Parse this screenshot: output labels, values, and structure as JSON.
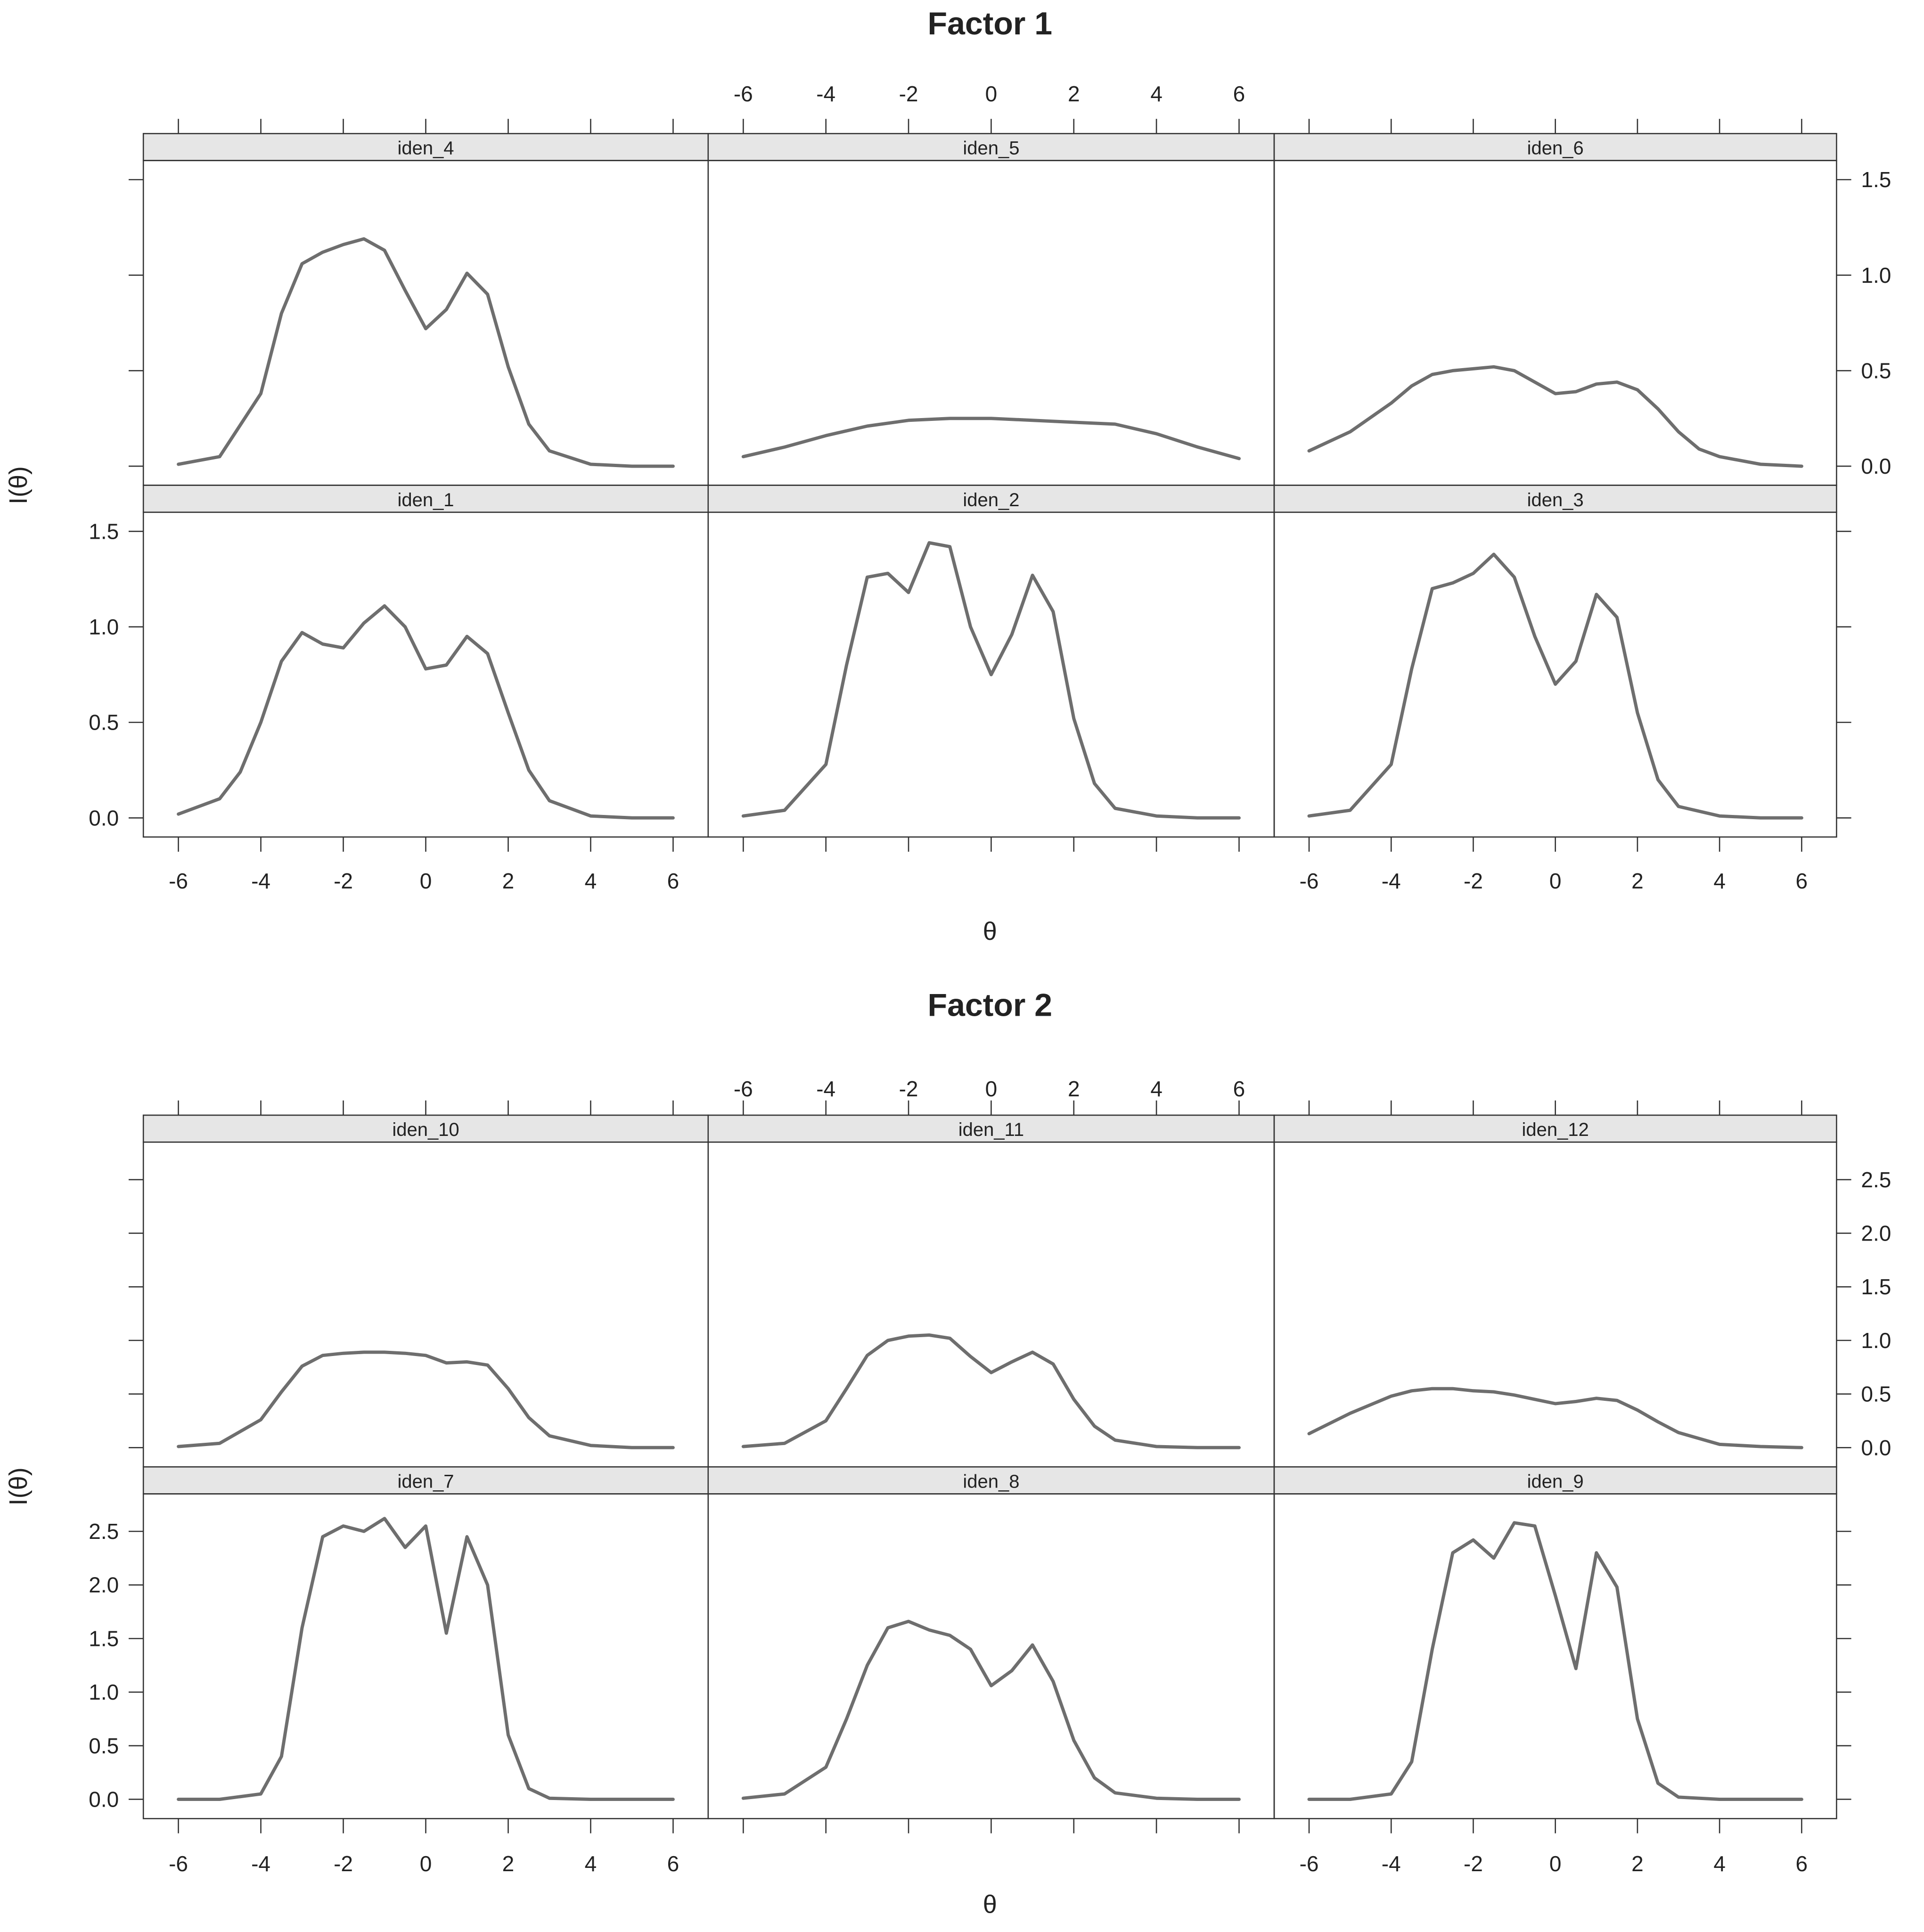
{
  "chart_data": [
    {
      "type": "line",
      "title": "Factor 1",
      "xlabel": "θ",
      "ylabel": "I(θ)",
      "xlim": [
        -6.85,
        6.85
      ],
      "ylim": [
        -0.1,
        1.6
      ],
      "x_ticks": [
        "-6",
        "-4",
        "-2",
        "0",
        "2",
        "4",
        "6"
      ],
      "y_ticks": [
        "0.0",
        "0.5",
        "1.0",
        "1.5"
      ],
      "grid": false,
      "layout": "2 rows x 3 columns",
      "panels": [
        {
          "name": "iden_4",
          "x": [
            -6,
            -5,
            -4,
            -3.5,
            -3,
            -2.5,
            -2,
            -1.5,
            -1,
            -0.5,
            0,
            0.5,
            1,
            1.5,
            2,
            2.5,
            3,
            4,
            5,
            6
          ],
          "values": [
            0.01,
            0.05,
            0.38,
            0.8,
            1.06,
            1.12,
            1.16,
            1.19,
            1.13,
            0.92,
            0.72,
            0.82,
            1.01,
            0.9,
            0.52,
            0.22,
            0.08,
            0.01,
            0.0,
            0.0
          ]
        },
        {
          "name": "iden_5",
          "x": [
            -6,
            -5,
            -4,
            -3,
            -2,
            -1,
            0,
            1,
            2,
            3,
            4,
            5,
            6
          ],
          "values": [
            0.05,
            0.1,
            0.16,
            0.21,
            0.24,
            0.25,
            0.25,
            0.24,
            0.23,
            0.22,
            0.17,
            0.1,
            0.04
          ]
        },
        {
          "name": "iden_6",
          "x": [
            -6,
            -5,
            -4,
            -3.5,
            -3,
            -2.5,
            -2,
            -1.5,
            -1,
            -0.5,
            0,
            0.5,
            1,
            1.5,
            2,
            2.5,
            3,
            3.5,
            4,
            5,
            6
          ],
          "values": [
            0.08,
            0.18,
            0.33,
            0.42,
            0.48,
            0.5,
            0.51,
            0.52,
            0.5,
            0.44,
            0.38,
            0.39,
            0.43,
            0.44,
            0.4,
            0.3,
            0.18,
            0.09,
            0.05,
            0.01,
            0.0
          ]
        },
        {
          "name": "iden_1",
          "x": [
            -6,
            -5,
            -4.5,
            -4,
            -3.5,
            -3,
            -2.5,
            -2,
            -1.5,
            -1,
            -0.5,
            0,
            0.5,
            1,
            1.5,
            2,
            2.5,
            3,
            4,
            5,
            6
          ],
          "values": [
            0.02,
            0.1,
            0.24,
            0.5,
            0.82,
            0.97,
            0.91,
            0.89,
            1.02,
            1.11,
            1.0,
            0.78,
            0.8,
            0.95,
            0.86,
            0.55,
            0.25,
            0.09,
            0.01,
            0.0,
            0.0
          ]
        },
        {
          "name": "iden_2",
          "x": [
            -6,
            -5,
            -4,
            -3.5,
            -3,
            -2.5,
            -2,
            -1.5,
            -1,
            -0.5,
            0,
            0.5,
            1,
            1.5,
            2,
            2.5,
            3,
            4,
            5,
            6
          ],
          "values": [
            0.01,
            0.04,
            0.28,
            0.8,
            1.26,
            1.28,
            1.18,
            1.44,
            1.42,
            1.0,
            0.75,
            0.96,
            1.27,
            1.08,
            0.52,
            0.18,
            0.05,
            0.01,
            0.0,
            0.0
          ]
        },
        {
          "name": "iden_3",
          "x": [
            -6,
            -5,
            -4,
            -3.5,
            -3,
            -2.5,
            -2,
            -1.5,
            -1,
            -0.5,
            0,
            0.5,
            1,
            1.5,
            2,
            2.5,
            3,
            4,
            5,
            6
          ],
          "values": [
            0.01,
            0.04,
            0.28,
            0.78,
            1.2,
            1.23,
            1.28,
            1.38,
            1.26,
            0.95,
            0.7,
            0.82,
            1.17,
            1.05,
            0.55,
            0.2,
            0.06,
            0.01,
            0.0,
            0.0
          ]
        }
      ]
    },
    {
      "type": "line",
      "title": "Factor 2",
      "xlabel": "θ",
      "ylabel": "I(θ)",
      "xlim": [
        -6.85,
        6.85
      ],
      "ylim": [
        -0.18,
        2.85
      ],
      "x_ticks": [
        "-6",
        "-4",
        "-2",
        "0",
        "2",
        "4",
        "6"
      ],
      "y_ticks": [
        "0.0",
        "0.5",
        "1.0",
        "1.5",
        "2.0",
        "2.5"
      ],
      "grid": false,
      "layout": "2 rows x 3 columns",
      "panels": [
        {
          "name": "iden_10",
          "x": [
            -6,
            -5,
            -4,
            -3.5,
            -3,
            -2.5,
            -2,
            -1.5,
            -1,
            -0.5,
            0,
            0.5,
            1,
            1.5,
            2,
            2.5,
            3,
            4,
            5,
            6
          ],
          "values": [
            0.01,
            0.04,
            0.26,
            0.52,
            0.76,
            0.86,
            0.88,
            0.89,
            0.89,
            0.88,
            0.86,
            0.79,
            0.8,
            0.77,
            0.55,
            0.28,
            0.11,
            0.02,
            0.0,
            0.0
          ]
        },
        {
          "name": "iden_11",
          "x": [
            -6,
            -5,
            -4,
            -3.5,
            -3,
            -2.5,
            -2,
            -1.5,
            -1,
            -0.5,
            0,
            0.5,
            1,
            1.5,
            2,
            2.5,
            3,
            4,
            5,
            6
          ],
          "values": [
            0.01,
            0.04,
            0.25,
            0.55,
            0.86,
            1.0,
            1.04,
            1.05,
            1.02,
            0.85,
            0.7,
            0.8,
            0.89,
            0.78,
            0.45,
            0.2,
            0.07,
            0.01,
            0.0,
            0.0
          ]
        },
        {
          "name": "iden_12",
          "x": [
            -6,
            -5,
            -4,
            -3.5,
            -3,
            -2.5,
            -2,
            -1.5,
            -1,
            -0.5,
            0,
            0.5,
            1,
            1.5,
            2,
            2.5,
            3,
            4,
            5,
            6
          ],
          "values": [
            0.13,
            0.32,
            0.48,
            0.53,
            0.55,
            0.55,
            0.53,
            0.52,
            0.49,
            0.45,
            0.41,
            0.43,
            0.46,
            0.44,
            0.35,
            0.24,
            0.14,
            0.03,
            0.01,
            0.0
          ]
        },
        {
          "name": "iden_7",
          "x": [
            -6,
            -5,
            -4,
            -3.5,
            -3,
            -2.5,
            -2,
            -1.5,
            -1,
            -0.5,
            0,
            0.5,
            1,
            1.5,
            2,
            2.5,
            3,
            4,
            5,
            6
          ],
          "values": [
            0.0,
            0.0,
            0.05,
            0.4,
            1.6,
            2.45,
            2.55,
            2.5,
            2.62,
            2.35,
            2.55,
            1.55,
            2.45,
            2.0,
            0.6,
            0.1,
            0.01,
            0.0,
            0.0,
            0.0
          ]
        },
        {
          "name": "iden_8",
          "x": [
            -6,
            -5,
            -4,
            -3.5,
            -3,
            -2.5,
            -2,
            -1.5,
            -1,
            -0.5,
            0,
            0.5,
            1,
            1.5,
            2,
            2.5,
            3,
            4,
            5,
            6
          ],
          "values": [
            0.01,
            0.05,
            0.3,
            0.75,
            1.25,
            1.6,
            1.66,
            1.58,
            1.53,
            1.4,
            1.06,
            1.2,
            1.44,
            1.1,
            0.55,
            0.2,
            0.06,
            0.01,
            0.0,
            0.0
          ]
        },
        {
          "name": "iden_9",
          "x": [
            -6,
            -5,
            -4,
            -3.5,
            -3,
            -2.5,
            -2,
            -1.5,
            -1,
            -0.5,
            0,
            0.5,
            1,
            1.5,
            2,
            2.5,
            3,
            4,
            5,
            6
          ],
          "values": [
            0.0,
            0.0,
            0.05,
            0.35,
            1.4,
            2.3,
            2.42,
            2.25,
            2.58,
            2.55,
            1.9,
            1.22,
            2.3,
            1.98,
            0.75,
            0.15,
            0.02,
            0.0,
            0.0,
            0.0
          ]
        }
      ]
    }
  ]
}
